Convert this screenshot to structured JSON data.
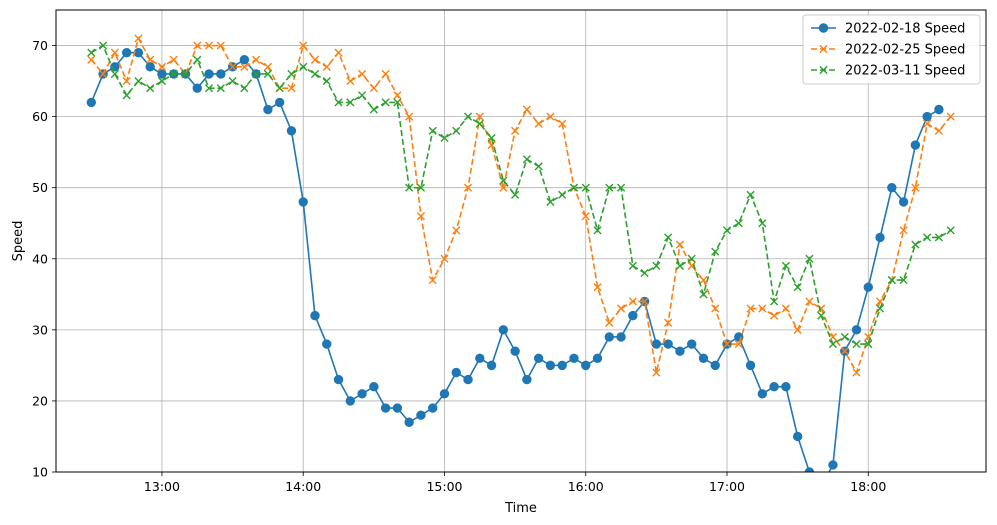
{
  "chart_data": {
    "type": "line",
    "title": "",
    "xlabel": "Time",
    "ylabel": "Speed",
    "xlim": [
      "12:15",
      "18:50"
    ],
    "ylim": [
      10,
      75
    ],
    "grid": true,
    "legend_position": "top-right",
    "x_ticks": [
      "13:00",
      "14:00",
      "15:00",
      "16:00",
      "17:00",
      "18:00"
    ],
    "y_ticks": [
      10,
      20,
      30,
      40,
      50,
      60,
      70
    ],
    "x": [
      "12:30",
      "12:35",
      "12:40",
      "12:45",
      "12:50",
      "12:55",
      "13:00",
      "13:05",
      "13:10",
      "13:15",
      "13:20",
      "13:25",
      "13:30",
      "13:35",
      "13:40",
      "13:45",
      "13:50",
      "13:55",
      "14:00",
      "14:05",
      "14:10",
      "14:15",
      "14:20",
      "14:25",
      "14:30",
      "14:35",
      "14:40",
      "14:45",
      "14:50",
      "14:55",
      "15:00",
      "15:05",
      "15:10",
      "15:15",
      "15:20",
      "15:25",
      "15:30",
      "15:35",
      "15:40",
      "15:45",
      "15:50",
      "15:55",
      "16:00",
      "16:05",
      "16:10",
      "16:15",
      "16:20",
      "16:25",
      "16:30",
      "16:35",
      "16:40",
      "16:45",
      "16:50",
      "16:55",
      "17:00",
      "17:05",
      "17:10",
      "17:15",
      "17:20",
      "17:25",
      "17:30",
      "17:35",
      "17:40",
      "17:45",
      "17:50",
      "17:55",
      "18:00",
      "18:05",
      "18:10",
      "18:15",
      "18:20",
      "18:25",
      "18:30",
      "18:35"
    ],
    "series": [
      {
        "name": "2022-02-18 Speed",
        "color": "#1f77b4",
        "linestyle": "solid",
        "marker": "circle",
        "values": [
          62,
          66,
          67,
          69,
          69,
          67,
          66,
          66,
          66,
          64,
          66,
          66,
          67,
          68,
          66,
          61,
          62,
          58,
          48,
          32,
          28,
          23,
          20,
          21,
          22,
          19,
          19,
          17,
          18,
          19,
          21,
          24,
          23,
          26,
          25,
          30,
          27,
          23,
          26,
          25,
          25,
          26,
          25,
          26,
          29,
          29,
          32,
          34,
          28,
          28,
          27,
          28,
          26,
          25,
          28,
          29,
          25,
          21,
          22,
          22,
          15,
          10,
          8,
          11,
          27,
          30,
          36,
          43,
          50,
          48,
          56,
          60,
          61,
          null
        ]
      },
      {
        "name": "2022-02-25 Speed",
        "color": "#ff7f0e",
        "linestyle": "dashed",
        "marker": "x",
        "values": [
          68,
          66,
          69,
          65,
          71,
          68,
          67,
          68,
          66,
          70,
          70,
          70,
          67,
          67,
          68,
          67,
          64,
          64,
          70,
          68,
          67,
          69,
          65,
          66,
          64,
          66,
          63,
          60,
          46,
          37,
          40,
          44,
          50,
          60,
          56,
          50,
          58,
          61,
          59,
          60,
          59,
          50,
          46,
          36,
          31,
          33,
          34,
          34,
          24,
          31,
          42,
          39,
          37,
          33,
          28,
          28,
          33,
          33,
          32,
          33,
          30,
          34,
          33,
          29,
          27,
          24,
          29,
          34,
          37,
          44,
          50,
          59,
          58,
          60
        ]
      },
      {
        "name": "2022-03-11 Speed",
        "color": "#2ca02c",
        "linestyle": "dashed",
        "marker": "x",
        "values": [
          69,
          70,
          66,
          63,
          65,
          64,
          65,
          66,
          66,
          68,
          64,
          64,
          65,
          64,
          66,
          66,
          64,
          66,
          67,
          66,
          65,
          62,
          62,
          63,
          61,
          62,
          62,
          50,
          50,
          58,
          57,
          58,
          60,
          59,
          57,
          51,
          49,
          54,
          53,
          48,
          49,
          50,
          50,
          44,
          50,
          50,
          39,
          38,
          39,
          43,
          39,
          40,
          35,
          41,
          44,
          45,
          49,
          45,
          34,
          39,
          36,
          40,
          32,
          28,
          29,
          28,
          28,
          33,
          37,
          37,
          42,
          43,
          43,
          44
        ]
      }
    ]
  }
}
